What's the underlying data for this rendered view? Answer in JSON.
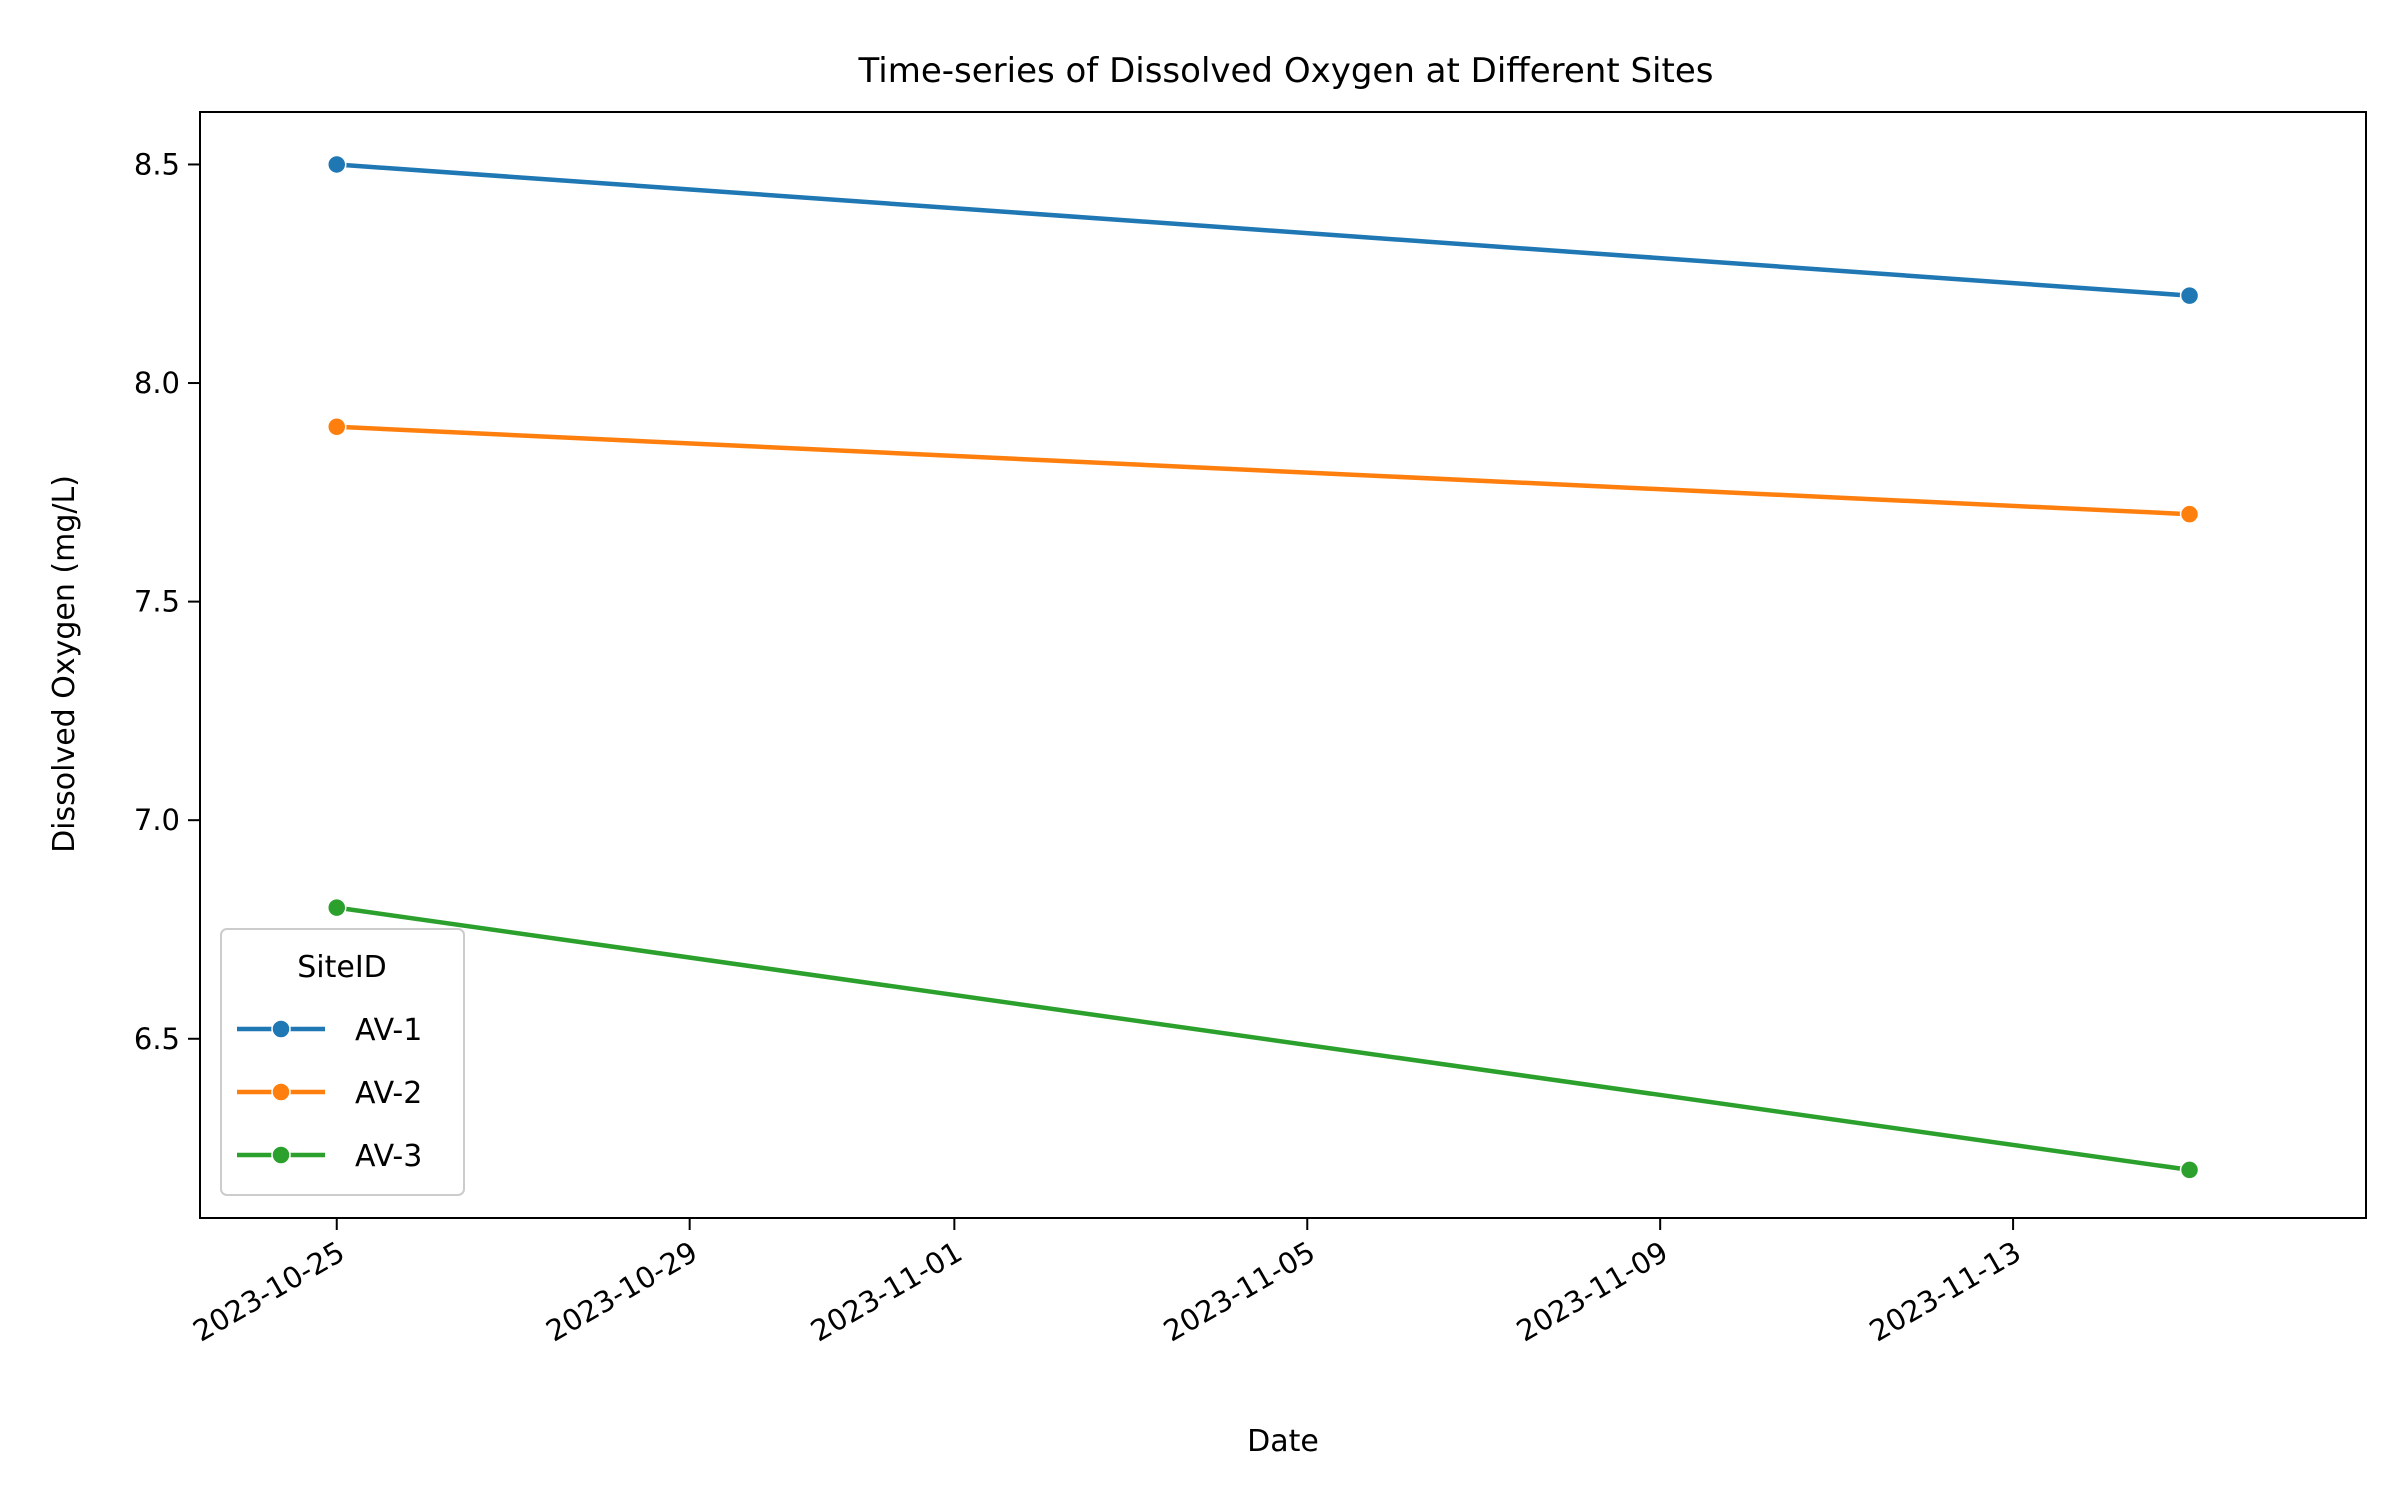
{
  "chart_data": {
    "type": "line",
    "title": "Time-series of Dissolved Oxygen at Different Sites",
    "xlabel": "Date",
    "ylabel": "Dissolved Oxygen (mg/L)",
    "x_type": "date",
    "xlim": [
      "2023-10-23",
      "2023-11-17"
    ],
    "ylim": [
      6.09,
      8.62
    ],
    "x_ticks": [
      "2023-10-25",
      "2023-10-29",
      "2023-11-01",
      "2023-11-05",
      "2023-11-09",
      "2023-11-13"
    ],
    "y_ticks": [
      "6.5",
      "7.0",
      "7.5",
      "8.0",
      "8.5"
    ],
    "grid": false,
    "legend": {
      "title": "SiteID",
      "placement": "lower-left"
    },
    "series": [
      {
        "name": "AV-1",
        "color": "#1f77b4",
        "points": [
          {
            "x": "2023-10-25",
            "y": 8.5
          },
          {
            "x": "2023-11-15",
            "y": 8.2
          }
        ]
      },
      {
        "name": "AV-2",
        "color": "#ff7f0e",
        "points": [
          {
            "x": "2023-10-25",
            "y": 7.9
          },
          {
            "x": "2023-11-15",
            "y": 7.7
          }
        ]
      },
      {
        "name": "AV-3",
        "color": "#2ca02c",
        "points": [
          {
            "x": "2023-10-25",
            "y": 6.8
          },
          {
            "x": "2023-11-15",
            "y": 6.2
          }
        ]
      }
    ]
  }
}
